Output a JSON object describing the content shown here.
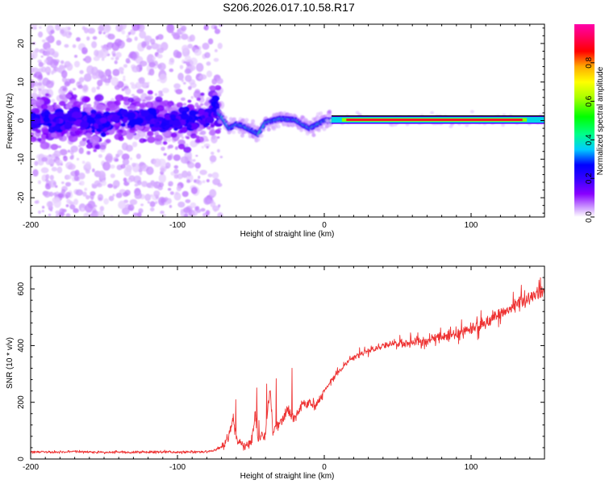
{
  "title": "S206.2026.017.10.58.R17",
  "chart_data": [
    {
      "type": "heatmap",
      "xlabel": "Height of straight line (km)",
      "ylabel": "Frequency (Hz)",
      "xlim": [
        -200,
        150
      ],
      "ylim": [
        -25,
        25
      ],
      "xticks": [
        -200,
        -100,
        0,
        100
      ],
      "yticks": [
        -20,
        -10,
        0,
        10,
        20
      ],
      "xtick_labels": [
        "-200",
        "-100",
        "0",
        "100"
      ],
      "ytick_labels": [
        "-20",
        "-10",
        "0",
        "10",
        "20"
      ],
      "colorbar": {
        "label": "Normalized spectral amplitude",
        "range": [
          0,
          1
        ],
        "ticks": [
          0.0,
          0.2,
          0.4,
          0.6,
          0.8
        ],
        "tick_labels": [
          "0.0",
          "0.2",
          "0.4",
          "0.6",
          "0.8"
        ],
        "colors": [
          "#ffffff",
          "#cc99ff",
          "#8800ff",
          "#3300ff",
          "#0000ff",
          "#00ccff",
          "#00ff88",
          "#00ff00",
          "#aaff00",
          "#ffff00",
          "#ffaa00",
          "#ff0000",
          "#ff0066",
          "#ff00aa"
        ]
      },
      "ridge": {
        "x": [
          -200,
          -190,
          -180,
          -170,
          -160,
          -150,
          -140,
          -130,
          -120,
          -110,
          -100,
          -90,
          -80,
          -75,
          -70,
          -65,
          -60,
          -55,
          -50,
          -45,
          -40,
          -35,
          -30,
          -25,
          -20,
          -15,
          -10,
          -5,
          0,
          5,
          10,
          20,
          40,
          60,
          80,
          100,
          120,
          140,
          150
        ],
        "y": [
          0,
          0.5,
          -0.5,
          1,
          0,
          -0.5,
          1,
          0,
          1.5,
          -1,
          0.5,
          0,
          1,
          3,
          1,
          -2,
          -1,
          -1.5,
          -2.5,
          -3.5,
          -0.5,
          0,
          0.5,
          0.3,
          0.2,
          -1,
          -2,
          -1,
          0,
          0,
          0.2,
          0.2,
          0.2,
          0.2,
          0.2,
          0.2,
          0.2,
          0.2,
          0.2
        ]
      }
    },
    {
      "type": "line",
      "xlabel": "Height of straight line (km)",
      "ylabel": "SNR (10 * v/v)",
      "xlim": [
        -200,
        150
      ],
      "ylim": [
        0,
        680
      ],
      "xticks": [
        -200,
        -100,
        0,
        100
      ],
      "yticks": [
        0,
        200,
        400,
        600
      ],
      "xtick_labels": [
        "-200",
        "-100",
        "0",
        "100"
      ],
      "ytick_labels": [
        "0",
        "200",
        "400",
        "600"
      ],
      "series": [
        {
          "name": "SNR",
          "color": "#ee3333",
          "x": [
            -200,
            -190,
            -180,
            -170,
            -160,
            -150,
            -140,
            -130,
            -120,
            -110,
            -100,
            -90,
            -80,
            -75,
            -70,
            -65,
            -62,
            -60,
            -55,
            -50,
            -47,
            -45,
            -40,
            -37,
            -35,
            -30,
            -25,
            -20,
            -15,
            -10,
            -5,
            0,
            5,
            10,
            15,
            20,
            30,
            40,
            50,
            60,
            70,
            80,
            90,
            100,
            110,
            120,
            130,
            140,
            150
          ],
          "y": [
            25,
            25,
            24,
            26,
            25,
            24,
            25,
            24,
            25,
            25,
            24,
            25,
            26,
            30,
            45,
            75,
            150,
            70,
            55,
            50,
            150,
            70,
            90,
            250,
            100,
            130,
            170,
            140,
            190,
            200,
            190,
            240,
            280,
            310,
            340,
            360,
            380,
            400,
            405,
            410,
            420,
            430,
            440,
            460,
            480,
            510,
            540,
            570,
            600
          ]
        }
      ]
    }
  ]
}
